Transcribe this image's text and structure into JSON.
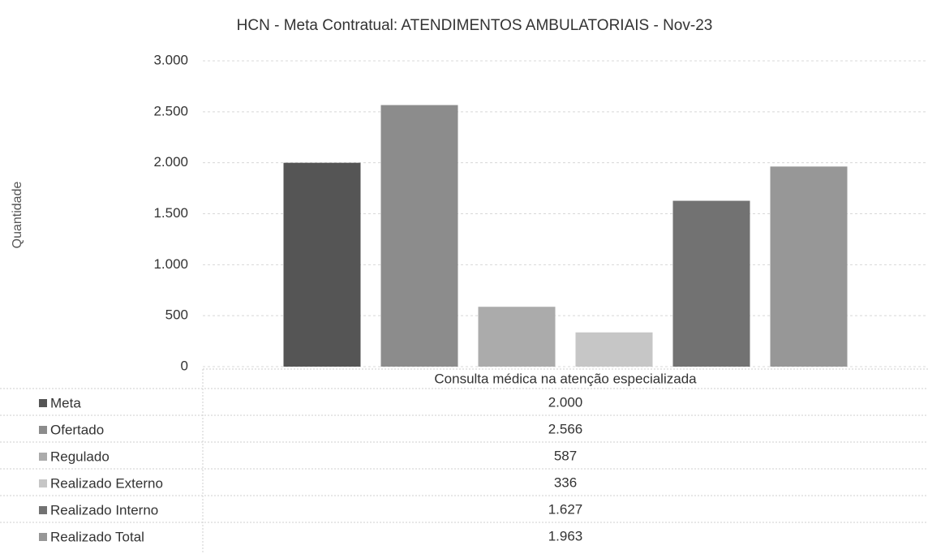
{
  "chart_data": {
    "type": "bar",
    "title": "HCN - Meta Contratual: ATENDIMENTOS AMBULATORIAIS - Nov-23",
    "y_label": "Quantidade",
    "categories": [
      "Consulta médica na atenção especializada"
    ],
    "series": [
      {
        "name": "Meta",
        "color": "#555555",
        "values": [
          2000
        ],
        "value_labels": [
          "2.000"
        ]
      },
      {
        "name": "Ofertado",
        "color": "#8c8c8c",
        "values": [
          2566
        ],
        "value_labels": [
          "2.566"
        ]
      },
      {
        "name": "Regulado",
        "color": "#ababab",
        "values": [
          587
        ],
        "value_labels": [
          "587"
        ]
      },
      {
        "name": "Realizado Externo",
        "color": "#c6c6c6",
        "values": [
          336
        ],
        "value_labels": [
          "336"
        ]
      },
      {
        "name": "Realizado Interno",
        "color": "#727272",
        "values": [
          1627
        ],
        "value_labels": [
          "1.627"
        ]
      },
      {
        "name": "Realizado Total",
        "color": "#979797",
        "values": [
          1963
        ],
        "value_labels": [
          "1.963"
        ]
      }
    ],
    "ylim": [
      0,
      3000
    ],
    "yticks": [
      0,
      {
        "value": 500,
        "label": "500"
      },
      {
        "value": 1000,
        "label": "1.000"
      },
      {
        "value": 1500,
        "label": "1.500"
      },
      {
        "value": 2000,
        "label": "2.000"
      },
      {
        "value": 2500,
        "label": "2.500"
      },
      {
        "value": 3000,
        "label": "3.000"
      }
    ],
    "grid": true
  }
}
